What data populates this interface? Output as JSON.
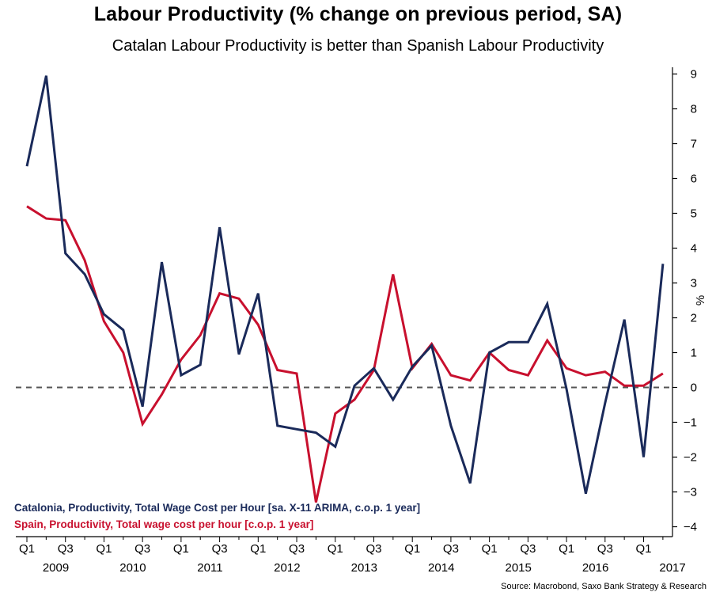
{
  "chart_data": {
    "type": "line",
    "title": "Labour Productivity (% change on previous period, SA)",
    "subtitle": "Catalan Labour Productivity is better than Spanish Labour Productivity",
    "xlabel": "",
    "ylabel": "%",
    "ylim": [
      -4,
      9
    ],
    "yticks": [
      9,
      8,
      7,
      6,
      5,
      4,
      3,
      2,
      1,
      0,
      -1,
      -2,
      -3,
      -4
    ],
    "quarter_labels": [
      "Q1",
      "Q3",
      "Q1",
      "Q3",
      "Q1",
      "Q3",
      "Q1",
      "Q3",
      "Q1",
      "Q3",
      "Q1",
      "Q3",
      "Q1",
      "Q3",
      "Q1",
      "Q3",
      "Q1"
    ],
    "year_labels": [
      "2009",
      "2010",
      "2011",
      "2012",
      "2013",
      "2014",
      "2015",
      "2016",
      "2017"
    ],
    "zero_line": "dashed",
    "series": [
      {
        "name": "Catalonia, Productivity, Total Wage Cost per Hour [sa. X-11 ARIMA, c.o.p. 1 year]",
        "color": "#1a2a5a",
        "values": [
          6.35,
          8.95,
          3.85,
          3.25,
          2.1,
          1.65,
          -0.55,
          3.6,
          0.35,
          0.65,
          4.6,
          0.95,
          2.7,
          -1.1,
          -1.2,
          -1.3,
          -1.7,
          0.05,
          0.55,
          -0.35,
          0.6,
          1.2,
          -1.1,
          -2.75,
          1.0,
          1.3,
          1.3,
          2.4,
          -0.05,
          -3.05,
          -0.45,
          1.95,
          -2.0,
          3.55
        ]
      },
      {
        "name": "Spain, Productivity, Total wage cost per hour [c.o.p. 1 year]",
        "color": "#c8102e",
        "values": [
          5.2,
          4.85,
          4.8,
          3.65,
          1.9,
          1.0,
          -1.05,
          -0.2,
          0.8,
          1.5,
          2.7,
          2.55,
          1.8,
          0.5,
          0.4,
          -3.3,
          -0.75,
          -0.35,
          0.5,
          3.25,
          0.55,
          1.25,
          0.35,
          0.2,
          1.0,
          0.5,
          0.35,
          1.35,
          0.55,
          0.35,
          0.45,
          0.05,
          0.05,
          0.4
        ]
      }
    ]
  },
  "source": "Source: Macrobond, Saxo Bank Strategy & Research"
}
